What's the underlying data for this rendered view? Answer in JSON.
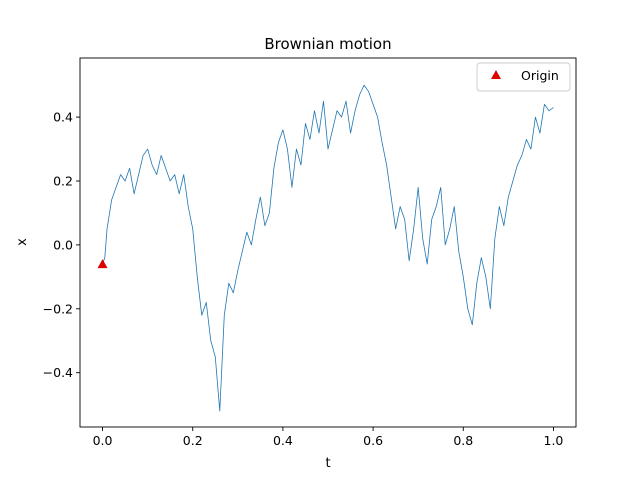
{
  "chart_data": {
    "type": "line",
    "title": "Brownian motion",
    "xlabel": "t",
    "ylabel": "x",
    "xlim": [
      -0.05,
      1.05
    ],
    "ylim": [
      -0.57,
      0.585
    ],
    "xticks": [
      0.0,
      0.2,
      0.4,
      0.6,
      0.8,
      1.0
    ],
    "xtick_labels": [
      "0.0",
      "0.2",
      "0.4",
      "0.6",
      "0.8",
      "1.0"
    ],
    "yticks": [
      -0.4,
      -0.2,
      0.0,
      0.2,
      0.4
    ],
    "ytick_labels": [
      "−0.4",
      "−0.2",
      "0.0",
      "0.2",
      "0.4"
    ],
    "grid": false,
    "legend": {
      "position": "top-right",
      "entries": [
        {
          "label": "Origin",
          "marker": "triangle",
          "color": "#dd0000"
        }
      ]
    },
    "series": [
      {
        "color": "#1f77b4",
        "x": [
          0.0,
          0.005,
          0.01,
          0.02,
          0.03,
          0.04,
          0.05,
          0.06,
          0.07,
          0.08,
          0.09,
          0.1,
          0.11,
          0.12,
          0.13,
          0.14,
          0.15,
          0.16,
          0.17,
          0.18,
          0.19,
          0.2,
          0.21,
          0.22,
          0.23,
          0.24,
          0.25,
          0.26,
          0.27,
          0.28,
          0.29,
          0.3,
          0.31,
          0.32,
          0.33,
          0.34,
          0.35,
          0.36,
          0.37,
          0.38,
          0.39,
          0.4,
          0.41,
          0.42,
          0.43,
          0.44,
          0.45,
          0.46,
          0.47,
          0.48,
          0.49,
          0.5,
          0.51,
          0.52,
          0.53,
          0.54,
          0.55,
          0.56,
          0.57,
          0.58,
          0.59,
          0.6,
          0.61,
          0.62,
          0.63,
          0.64,
          0.65,
          0.66,
          0.67,
          0.68,
          0.69,
          0.7,
          0.71,
          0.72,
          0.73,
          0.74,
          0.75,
          0.76,
          0.77,
          0.78,
          0.79,
          0.8,
          0.81,
          0.82,
          0.83,
          0.84,
          0.85,
          0.86,
          0.87,
          0.88,
          0.89,
          0.9,
          0.91,
          0.92,
          0.93,
          0.94,
          0.95,
          0.96,
          0.97,
          0.98,
          0.99,
          1.0
        ],
        "values": [
          -0.06,
          -0.04,
          0.05,
          0.14,
          0.18,
          0.22,
          0.2,
          0.24,
          0.16,
          0.22,
          0.28,
          0.3,
          0.25,
          0.22,
          0.28,
          0.24,
          0.2,
          0.22,
          0.16,
          0.22,
          0.12,
          0.05,
          -0.1,
          -0.22,
          -0.18,
          -0.3,
          -0.35,
          -0.52,
          -0.22,
          -0.12,
          -0.15,
          -0.08,
          -0.02,
          0.04,
          0.0,
          0.08,
          0.15,
          0.06,
          0.1,
          0.24,
          0.32,
          0.36,
          0.3,
          0.18,
          0.3,
          0.25,
          0.38,
          0.33,
          0.42,
          0.35,
          0.45,
          0.3,
          0.36,
          0.42,
          0.4,
          0.45,
          0.35,
          0.42,
          0.47,
          0.5,
          0.48,
          0.44,
          0.4,
          0.32,
          0.25,
          0.15,
          0.05,
          0.12,
          0.08,
          -0.05,
          0.05,
          0.18,
          0.02,
          -0.06,
          0.08,
          0.12,
          0.18,
          0.0,
          0.05,
          0.12,
          -0.02,
          -0.1,
          -0.2,
          -0.25,
          -0.12,
          -0.04,
          -0.1,
          -0.2,
          0.02,
          0.12,
          0.06,
          0.15,
          0.2,
          0.25,
          0.28,
          0.33,
          0.3,
          0.4,
          0.35,
          0.44,
          0.42,
          0.43
        ]
      }
    ],
    "markers": [
      {
        "x": 0.0,
        "y": -0.06,
        "marker": "triangle",
        "color": "#dd0000",
        "label": "Origin"
      }
    ]
  }
}
